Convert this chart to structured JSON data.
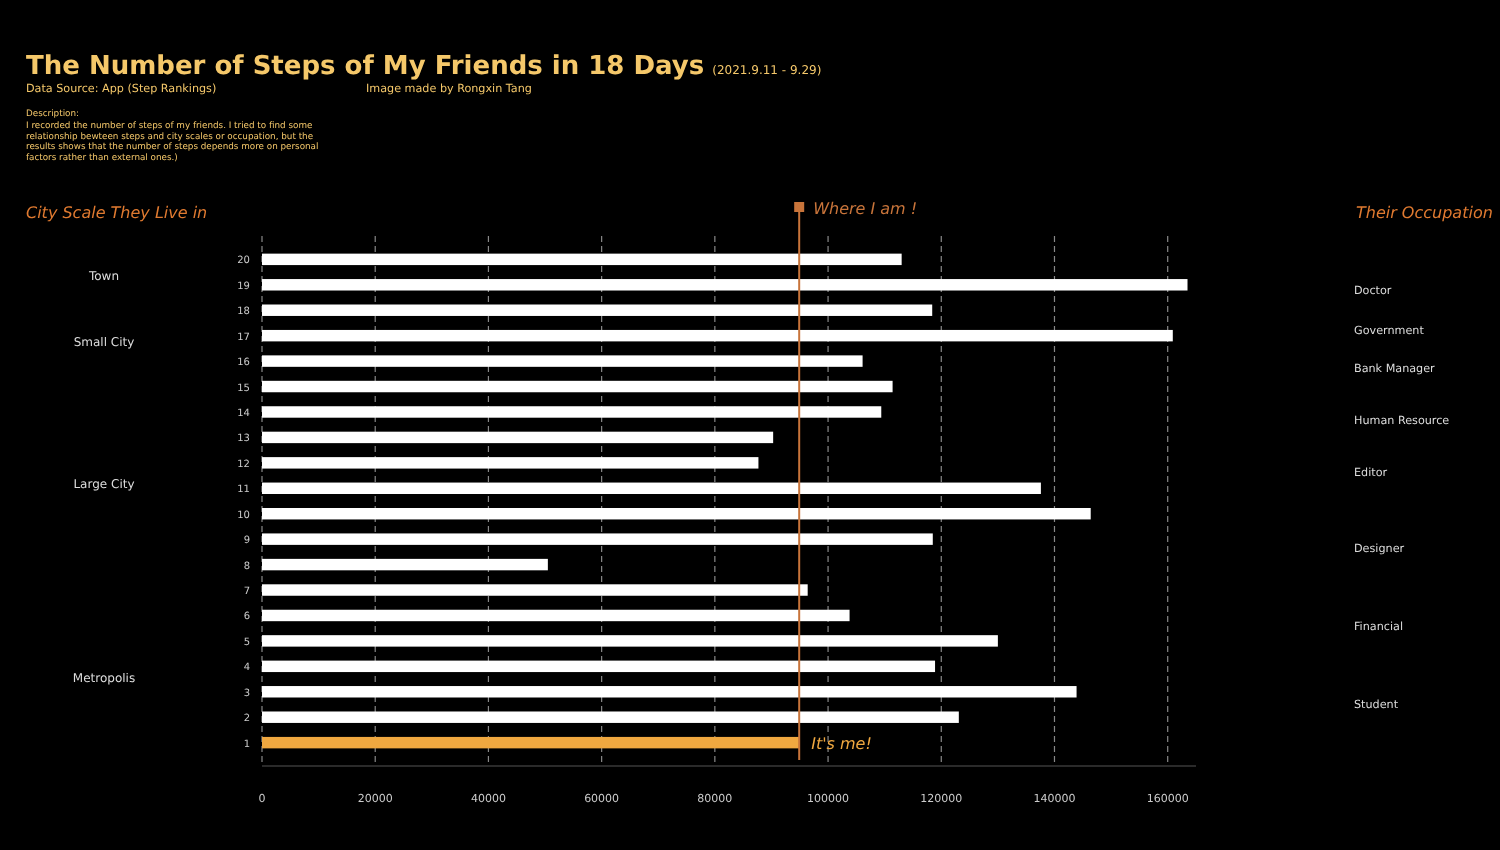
{
  "chart_data": {
    "type": "bar",
    "orientation": "horizontal",
    "title": "The Number of Steps of My Friends in 18 Days",
    "subtitle": "(2021.9.11 - 9.29)",
    "categories": [
      "20",
      "19",
      "18",
      "17",
      "16",
      "15",
      "14",
      "13",
      "12",
      "11",
      "10",
      "9",
      "8",
      "7",
      "6",
      "5",
      "4",
      "3",
      "2",
      "1"
    ],
    "values": [
      113000,
      163500,
      118400,
      160900,
      106100,
      111400,
      109400,
      90300,
      87700,
      137600,
      146400,
      118500,
      50500,
      96400,
      103800,
      130000,
      118900,
      143900,
      123100,
      94900
    ],
    "colors": [
      "#ffffff",
      "#ffffff",
      "#ffffff",
      "#ffffff",
      "#ffffff",
      "#ffffff",
      "#ffffff",
      "#ffffff",
      "#ffffff",
      "#ffffff",
      "#ffffff",
      "#ffffff",
      "#ffffff",
      "#ffffff",
      "#ffffff",
      "#ffffff",
      "#ffffff",
      "#ffffff",
      "#ffffff",
      "#f0a840"
    ],
    "xlim": [
      0,
      165000
    ],
    "xticks": [
      0,
      20000,
      40000,
      60000,
      80000,
      100000,
      120000,
      140000,
      160000
    ],
    "grid": "x",
    "ref_lines": [
      {
        "axis": "x",
        "value": 94900,
        "label": "Where I am !",
        "color": "#c8743a"
      }
    ],
    "annotations": [
      "Data Source: App (Step Rankings)",
      "Image made by Rongxin Tang",
      "Description:",
      "I recorded the number of steps of my friends. I tried to find some relationship bewteen steps and city scales or occupation, but the results shows that the number of steps depends more on personal factors rather than external ones.)",
      "City Scale They Live in",
      "Town",
      "Small City",
      "Large City",
      "Metropolis",
      "Their Occupation",
      "Doctor",
      "Government",
      "Bank Manager",
      "Human Resource",
      "Editor",
      "Designer",
      "Financial",
      "Student",
      {
        "text": "It's me!",
        "x": 94900,
        "y": "1"
      }
    ]
  }
}
